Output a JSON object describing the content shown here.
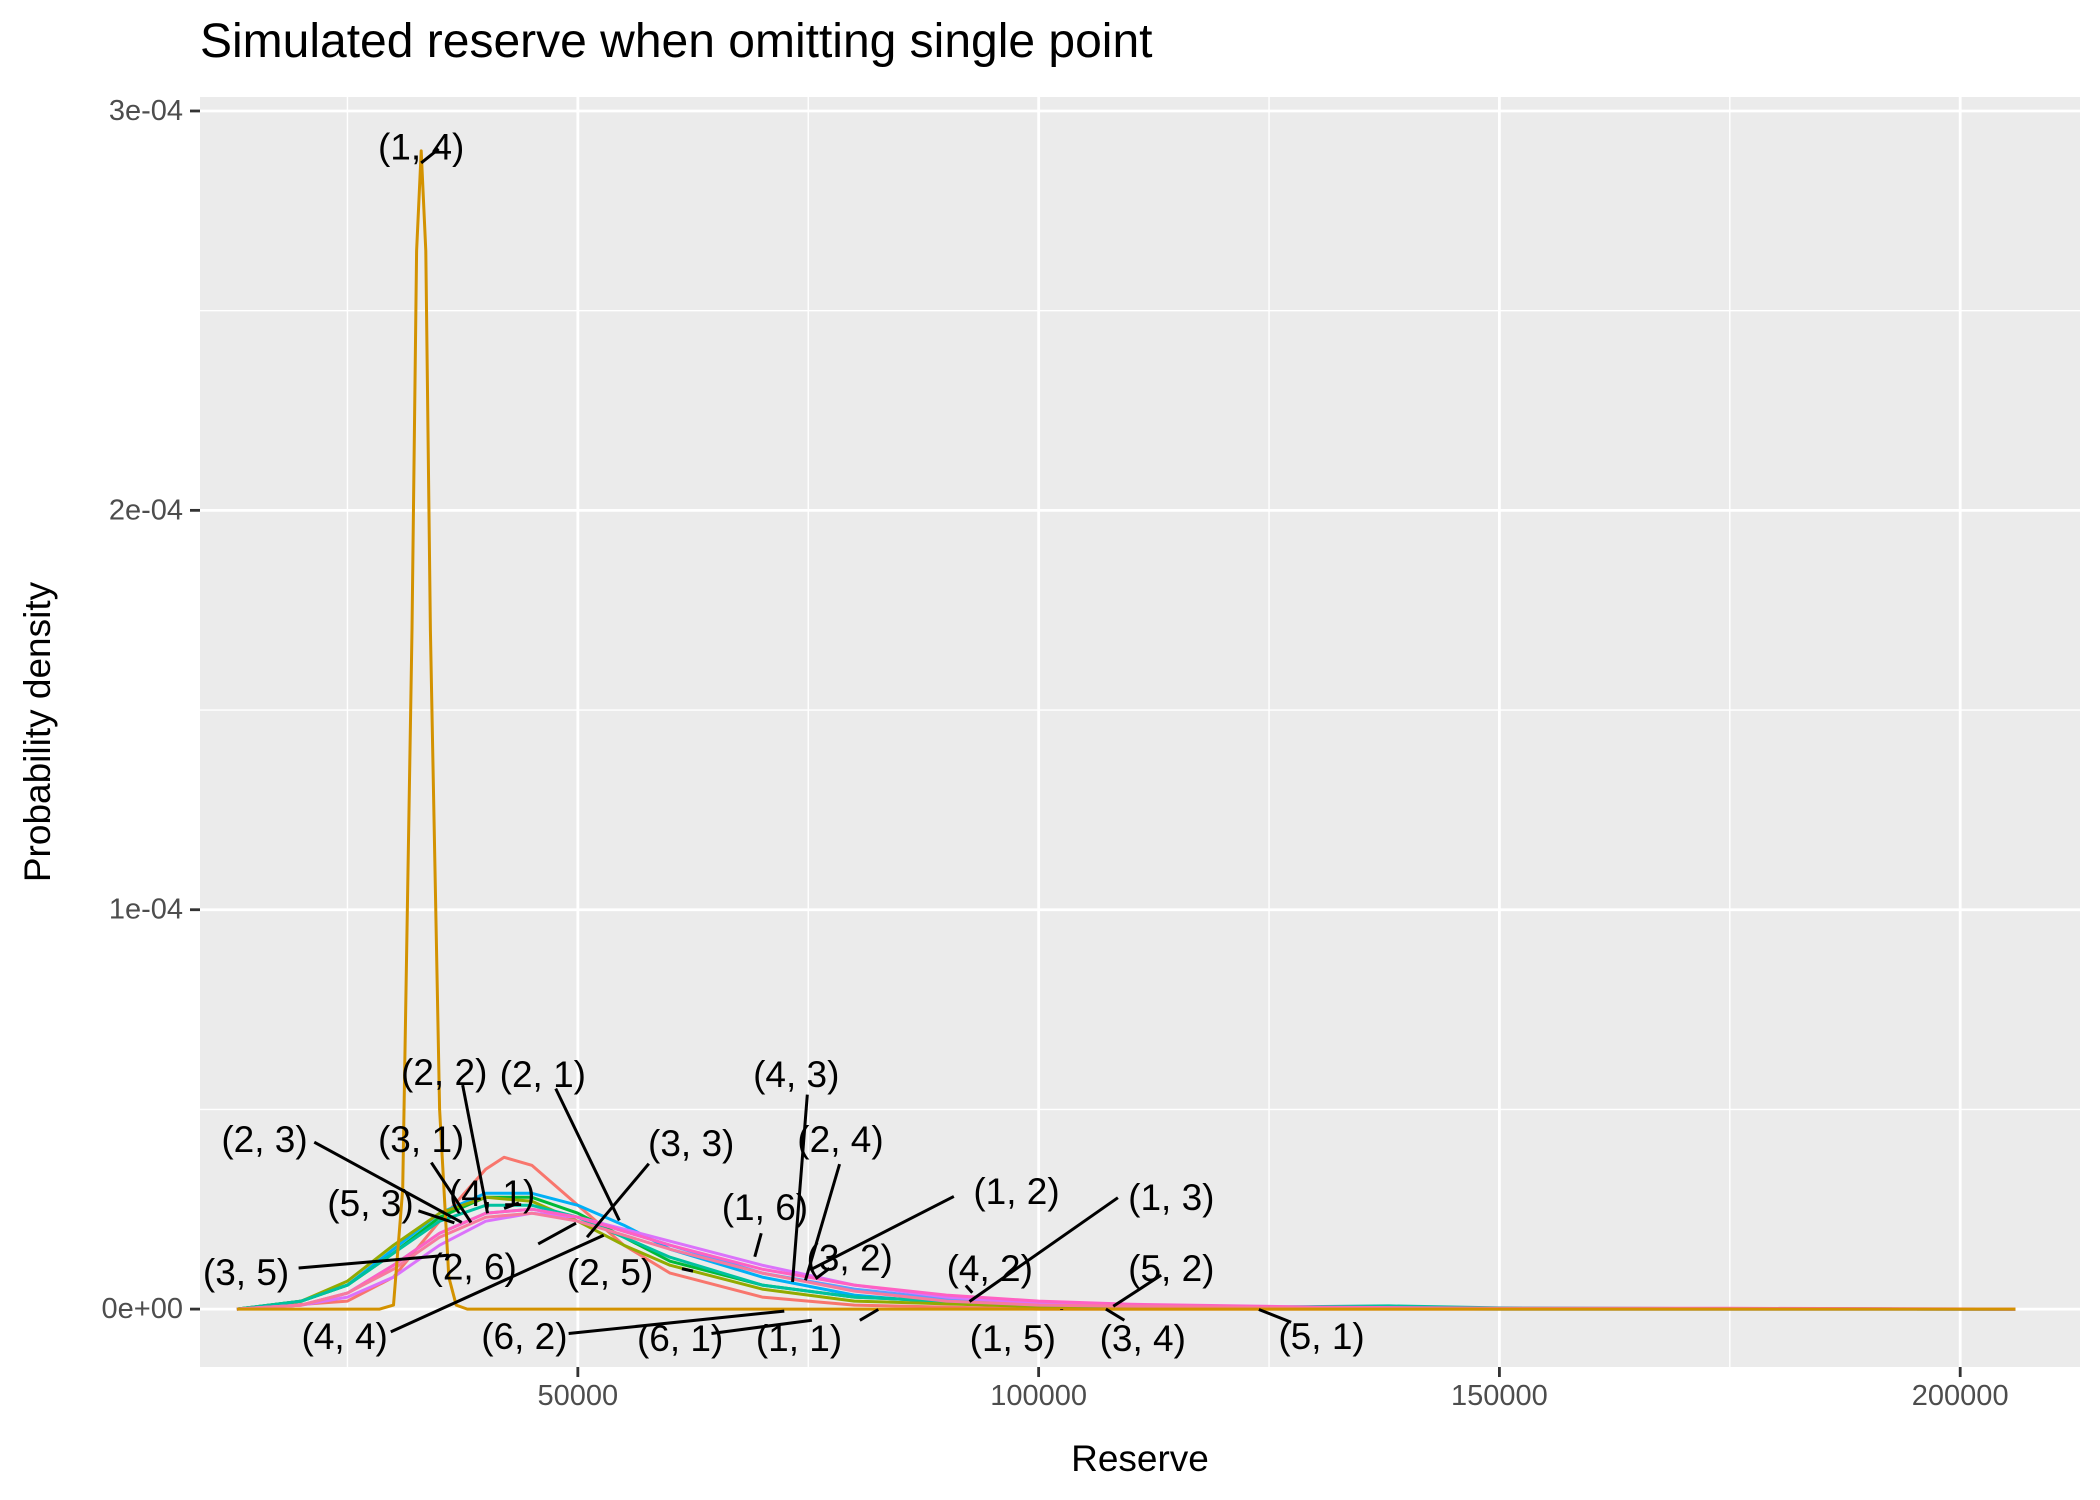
{
  "chart_data": {
    "type": "line",
    "title": "Simulated reserve when omitting single point",
    "xlabel": "Reserve",
    "ylabel": "Probability density",
    "xlim": [
      9000,
      213000
    ],
    "ylim": [
      -1.45e-05,
      0.0003035
    ],
    "x_ticks": [
      50000,
      100000,
      150000,
      200000
    ],
    "x_tick_labels": [
      "50000",
      "100000",
      "150000",
      "200000"
    ],
    "y_ticks": [
      0,
      0.0001,
      0.0002,
      0.0003
    ],
    "y_tick_labels": [
      "0e+00",
      "1e-04",
      "2e-04",
      "3e-04"
    ],
    "grid": true,
    "legend": "none",
    "series": [
      {
        "name": "(1, 4)",
        "color": "#D39200",
        "x": [
          13000,
          25000,
          28500,
          30000,
          31000,
          32000,
          32500,
          33000,
          33500,
          34000,
          35000,
          36000,
          36800,
          38000,
          50000,
          100000,
          206000
        ],
        "y": [
          0,
          0,
          0,
          1e-06,
          3e-05,
          0.00017,
          0.000265,
          0.00029,
          0.000265,
          0.00017,
          5e-05,
          8e-06,
          1e-06,
          0,
          0,
          0,
          0
        ]
      },
      {
        "name": "(2, 1)",
        "color": "#F8766D",
        "x": [
          13000,
          25000,
          30000,
          35000,
          40000,
          42000,
          45000,
          50000,
          55000,
          60000,
          70000,
          80000,
          100000,
          150000,
          206000
        ],
        "y": [
          0,
          2e-06,
          8e-06,
          2.2e-05,
          3.5e-05,
          3.8e-05,
          3.6e-05,
          2.6e-05,
          1.6e-05,
          9e-06,
          3e-06,
          1e-06,
          0,
          0,
          0
        ]
      },
      {
        "name": "(1, 2)",
        "color": "#00B0F6",
        "x": [
          13000,
          20000,
          25000,
          30000,
          35000,
          40000,
          45000,
          50000,
          55000,
          60000,
          70000,
          80000,
          90000,
          100000,
          120000,
          150000,
          206000
        ],
        "y": [
          0,
          2e-06,
          6e-06,
          1.5e-05,
          2.4e-05,
          2.9e-05,
          2.9e-05,
          2.6e-05,
          2.1e-05,
          1.5e-05,
          8e-06,
          3.5e-06,
          1.5e-06,
          7e-07,
          2e-07,
          0,
          0
        ]
      },
      {
        "name": "(3, 3)",
        "color": "#00BA38",
        "x": [
          13000,
          20000,
          25000,
          30000,
          35000,
          40000,
          45000,
          50000,
          55000,
          60000,
          70000,
          80000,
          100000,
          130000,
          206000
        ],
        "y": [
          0,
          2e-06,
          6e-06,
          1.4e-05,
          2.3e-05,
          2.8e-05,
          2.8e-05,
          2.4e-05,
          1.8e-05,
          1.2e-05,
          6e-06,
          3e-06,
          1e-06,
          2e-07,
          0
        ]
      },
      {
        "name": "(2, 2)",
        "color": "#93AA00",
        "x": [
          13000,
          20000,
          25000,
          30000,
          35000,
          40000,
          45000,
          50000,
          55000,
          60000,
          70000,
          80000,
          100000,
          130000,
          206000
        ],
        "y": [
          0,
          2e-06,
          7e-06,
          1.6e-05,
          2.4e-05,
          2.8e-05,
          2.7e-05,
          2.2e-05,
          1.6e-05,
          1.1e-05,
          5e-06,
          2e-06,
          6e-07,
          1e-07,
          0
        ]
      },
      {
        "name": "(3, 4)",
        "color": "#00C19F",
        "x": [
          13000,
          20000,
          25000,
          30000,
          35000,
          40000,
          45000,
          50000,
          60000,
          70000,
          80000,
          100000,
          120000,
          138000,
          150000,
          175000,
          206000
        ],
        "y": [
          0,
          2e-06,
          6e-06,
          1.4e-05,
          2.2e-05,
          2.6e-05,
          2.6e-05,
          2.3e-05,
          1.3e-05,
          6e-06,
          3e-06,
          1e-06,
          4e-07,
          8e-07,
          3e-07,
          1e-07,
          0
        ]
      },
      {
        "name": "(4, 2)",
        "color": "#619CFF",
        "x": [
          13000,
          20000,
          25000,
          30000,
          35000,
          40000,
          45000,
          50000,
          60000,
          70000,
          80000,
          90000,
          100000,
          120000,
          150000,
          206000
        ],
        "y": [
          0,
          1e-06,
          4e-06,
          1.1e-05,
          1.9e-05,
          2.4e-05,
          2.5e-05,
          2.3e-05,
          1.6e-05,
          9e-06,
          5e-06,
          2.5e-06,
          1.2e-06,
          3e-07,
          1e-07,
          0
        ]
      },
      {
        "name": "(4, 4)",
        "color": "#DB72FB",
        "x": [
          13000,
          20000,
          25000,
          30000,
          35000,
          40000,
          45000,
          50000,
          60000,
          70000,
          80000,
          90000,
          100000,
          120000,
          150000,
          206000
        ],
        "y": [
          0,
          1e-06,
          3e-06,
          8e-06,
          1.6e-05,
          2.2e-05,
          2.4e-05,
          2.3e-05,
          1.7e-05,
          1.1e-05,
          6e-06,
          3e-06,
          1.5e-06,
          4e-07,
          1e-07,
          0
        ]
      },
      {
        "name": "(5, 1)",
        "color": "#FF61C3",
        "x": [
          13000,
          20000,
          25000,
          30000,
          35000,
          40000,
          45000,
          50000,
          60000,
          70000,
          80000,
          90000,
          100000,
          110000,
          130000,
          150000,
          175000,
          206000
        ],
        "y": [
          0,
          1e-06,
          4e-06,
          1.1e-05,
          1.9e-05,
          2.4e-05,
          2.5e-05,
          2.3e-05,
          1.6e-05,
          1e-05,
          6e-06,
          3.5e-06,
          2e-06,
          1.2e-06,
          5e-07,
          2e-07,
          2e-07,
          0
        ]
      },
      {
        "name": "(6, 1)",
        "color": "#F77A9E",
        "x": [
          13000,
          20000,
          25000,
          30000,
          35000,
          40000,
          45000,
          50000,
          60000,
          70000,
          80000,
          90000,
          100000,
          130000,
          206000
        ],
        "y": [
          0,
          1e-06,
          4e-06,
          1e-05,
          1.8e-05,
          2.3e-05,
          2.4e-05,
          2.2e-05,
          1.5e-05,
          9e-06,
          4.5e-06,
          2e-06,
          1e-06,
          2e-07,
          0
        ]
      }
    ],
    "annotations": [
      {
        "text": "(1, 4)",
        "x": 33000,
        "y": 0.000291
      },
      {
        "text": "(2, 2)",
        "x": 35500,
        "y": 5.93e-05
      },
      {
        "text": "(2, 1)",
        "x": 46200,
        "y": 5.88e-05
      },
      {
        "text": "(4, 3)",
        "x": 73700,
        "y": 5.88e-05
      },
      {
        "text": "(2, 3)",
        "x": 16000,
        "y": 4.25e-05
      },
      {
        "text": "(3, 1)",
        "x": 33000,
        "y": 4.25e-05
      },
      {
        "text": "(3, 3)",
        "x": 62300,
        "y": 4.15e-05
      },
      {
        "text": "(2, 4)",
        "x": 78500,
        "y": 4.25e-05
      },
      {
        "text": "(4, 1)",
        "x": 40700,
        "y": 2.9e-05
      },
      {
        "text": "(5, 3)",
        "x": 27500,
        "y": 2.64e-05
      },
      {
        "text": "(1, 6)",
        "x": 70300,
        "y": 2.54e-05
      },
      {
        "text": "(1, 2)",
        "x": 97600,
        "y": 2.95e-05
      },
      {
        "text": "(1, 3)",
        "x": 114400,
        "y": 2.79e-05
      },
      {
        "text": "(3, 5)",
        "x": 14000,
        "y": 9.1e-06
      },
      {
        "text": "(2, 6)",
        "x": 38700,
        "y": 1.06e-05
      },
      {
        "text": "(3, 2)",
        "x": 79500,
        "y": 1.28e-05
      },
      {
        "text": "(2, 5)",
        "x": 53500,
        "y": 9.1e-06
      },
      {
        "text": "(4, 2)",
        "x": 94700,
        "y": 1.02e-05
      },
      {
        "text": "(5, 2)",
        "x": 114400,
        "y": 1.02e-05
      },
      {
        "text": "(4, 4)",
        "x": 24700,
        "y": -6.9e-06
      },
      {
        "text": "(6, 2)",
        "x": 44200,
        "y": -6.9e-06
      },
      {
        "text": "(6, 1)",
        "x": 61100,
        "y": -7.4e-06
      },
      {
        "text": "(1, 1)",
        "x": 74000,
        "y": -7.4e-06
      },
      {
        "text": "(1, 5)",
        "x": 97200,
        "y": -7.4e-06
      },
      {
        "text": "(3, 4)",
        "x": 111300,
        "y": -7.4e-06
      },
      {
        "text": "(5, 1)",
        "x": 130700,
        "y": -6.9e-06
      }
    ],
    "leader_lines": [
      [
        [
          33000,
          0.000287
        ],
        [
          34900,
          0.0002905
        ]
      ],
      [
        [
          37500,
          5.61e-05
        ],
        [
          40200,
          2.4e-05
        ]
      ],
      [
        [
          47600,
          5.52e-05
        ],
        [
          54500,
          2.22e-05
        ]
      ],
      [
        [
          74900,
          5.37e-05
        ],
        [
          73300,
          6.8e-06
        ]
      ],
      [
        [
          21400,
          4.18e-05
        ],
        [
          37400,
          2.17e-05
        ]
      ],
      [
        [
          34100,
          3.67e-05
        ],
        [
          38400,
          2.17e-05
        ]
      ],
      [
        [
          57700,
          3.64e-05
        ],
        [
          51000,
          1.8e-05
        ]
      ],
      [
        [
          78400,
          3.63e-05
        ],
        [
          74700,
          7.2e-06
        ]
      ],
      [
        [
          43600,
          2.66e-05
        ],
        [
          42000,
          2.52e-05
        ]
      ],
      [
        [
          32700,
          2.46e-05
        ],
        [
          36600,
          2.16e-05
        ]
      ],
      [
        [
          69900,
          1.9e-05
        ],
        [
          69200,
          1.31e-05
        ]
      ],
      [
        [
          90800,
          2.82e-05
        ],
        [
          75200,
          9.8e-06
        ]
      ],
      [
        [
          108600,
          2.79e-05
        ],
        [
          92500,
          1.9e-06
        ]
      ],
      [
        [
          19700,
          1.03e-05
        ],
        [
          36000,
          1.35e-05
        ]
      ],
      [
        [
          45700,
          1.63e-05
        ],
        [
          49800,
          2.15e-05
        ]
      ],
      [
        [
          77300,
          1.02e-05
        ],
        [
          75800,
          7.6e-06
        ]
      ],
      [
        [
          61300,
          1.01e-05
        ],
        [
          62500,
          9.5e-06
        ]
      ],
      [
        [
          92100,
          5.9e-06
        ],
        [
          92800,
          4.1e-06
        ]
      ],
      [
        [
          113300,
          8.5e-06
        ],
        [
          108100,
          7e-07
        ]
      ],
      [
        [
          29700,
          -5.7e-06
        ],
        [
          52800,
          1.85e-05
        ]
      ],
      [
        [
          49000,
          -6.1e-06
        ],
        [
          72400,
          -5e-07
        ]
      ],
      [
        [
          64500,
          -6.1e-06
        ],
        [
          75400,
          -2.8e-06
        ]
      ],
      [
        [
          80600,
          -2.8e-06
        ],
        [
          82600,
          -1e-07
        ]
      ],
      [
        [
          102500,
          -2e-07
        ],
        [
          102500,
          0
        ]
      ],
      [
        [
          109300,
          -2.8e-06
        ],
        [
          107300,
          0
        ]
      ],
      [
        [
          127400,
          -3.3e-06
        ],
        [
          123900,
          -1e-07
        ]
      ]
    ]
  }
}
